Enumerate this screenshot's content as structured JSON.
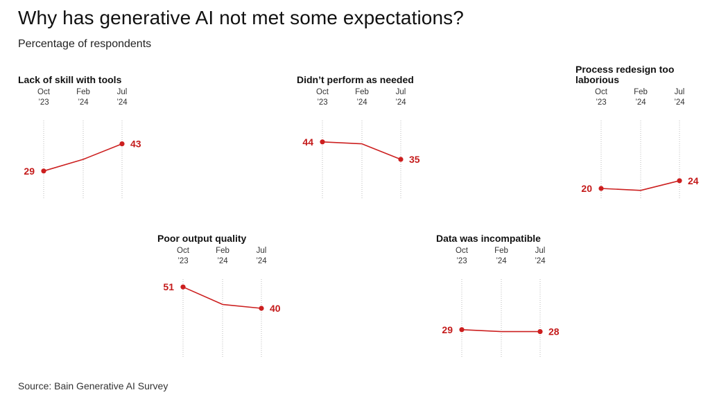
{
  "title": "Why has generative AI not met some expectations?",
  "subtitle": "Percentage of respondents",
  "source": "Source: Bain Generative AI Survey",
  "colors": {
    "line": "#cc1f1f",
    "grid": "#b8b8b8",
    "label": "#c41a1a",
    "tick": "#333333"
  },
  "chart_data": [
    {
      "type": "line",
      "title": "Lack of skill with tools",
      "categories": [
        "Oct ’23",
        "Feb ’24",
        "Jul ’24"
      ],
      "values": [
        29,
        35,
        43
      ],
      "labeled": [
        0,
        2
      ],
      "ylim": [
        15,
        55
      ]
    },
    {
      "type": "line",
      "title": "Didn’t perform as needed",
      "categories": [
        "Oct ’23",
        "Feb ’24",
        "Jul ’24"
      ],
      "values": [
        44,
        43,
        35
      ],
      "labeled": [
        0,
        2
      ],
      "ylim": [
        15,
        55
      ]
    },
    {
      "type": "line",
      "title": "Process redesign too laborious",
      "categories": [
        "Oct ’23",
        "Feb ’24",
        "Jul ’24"
      ],
      "values": [
        20,
        19,
        24
      ],
      "labeled": [
        0,
        2
      ],
      "ylim": [
        15,
        55
      ]
    },
    {
      "type": "line",
      "title": "Poor output quality",
      "categories": [
        "Oct ’23",
        "Feb ’24",
        "Jul ’24"
      ],
      "values": [
        51,
        42,
        40
      ],
      "labeled": [
        0,
        2
      ],
      "ylim": [
        15,
        55
      ]
    },
    {
      "type": "line",
      "title": "Data was incompatible",
      "categories": [
        "Oct ’23",
        "Feb ’24",
        "Jul ’24"
      ],
      "values": [
        29,
        28,
        28
      ],
      "labeled": [
        0,
        2
      ],
      "ylim": [
        15,
        55
      ]
    }
  ]
}
